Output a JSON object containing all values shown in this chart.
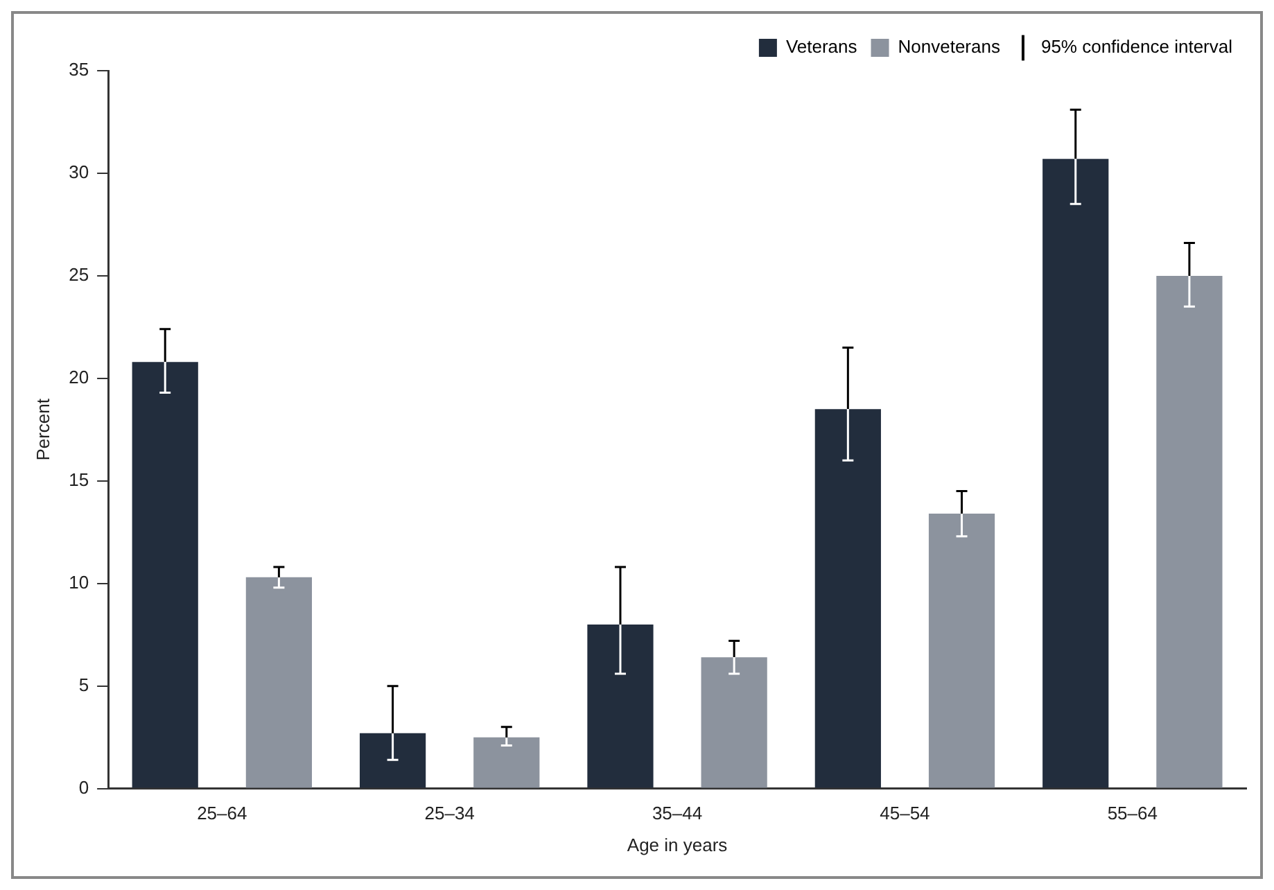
{
  "chart_data": {
    "type": "bar",
    "xlabel": "Age in years",
    "ylabel": "Percent",
    "categories": [
      "25–64",
      "25–34",
      "35–44",
      "45–54",
      "55–64"
    ],
    "series": [
      {
        "name": "Veterans",
        "color": "#222d3d",
        "values": [
          20.8,
          2.7,
          8.0,
          18.5,
          30.7
        ],
        "errors": [
          [
            19.3,
            22.4
          ],
          [
            1.4,
            5.0
          ],
          [
            5.6,
            10.8
          ],
          [
            16.0,
            21.5
          ],
          [
            28.5,
            33.1
          ]
        ]
      },
      {
        "name": "Nonveterans",
        "color": "#8c939e",
        "values": [
          10.3,
          2.5,
          6.4,
          13.4,
          25.0
        ],
        "errors": [
          [
            9.8,
            10.8
          ],
          [
            2.1,
            3.0
          ],
          [
            5.6,
            7.2
          ],
          [
            12.3,
            14.5
          ],
          [
            23.5,
            26.6
          ]
        ]
      }
    ],
    "annotations": [
      "95% confidence interval"
    ],
    "ylim": [
      0,
      35
    ],
    "yticks": [
      0,
      5,
      10,
      15,
      20,
      25,
      30,
      35
    ],
    "grid": false,
    "legend": "top right"
  }
}
